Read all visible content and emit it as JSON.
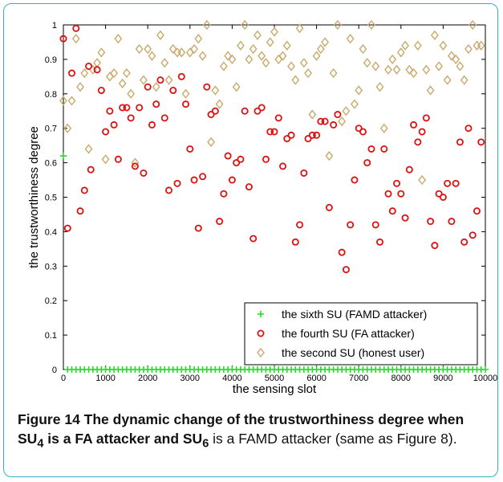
{
  "caption": {
    "label": "Figure 14",
    "text": "The dynamic change of the trustworthiness degree when SU",
    "sub1": "4",
    "text2": " is a FA attacker and SU",
    "sub2": "6",
    "text3": " is a FAMD attacker (same as Figure 8)."
  },
  "colors": {
    "frame": "#2fb5c7",
    "sixth": "#22dd22",
    "fourth": "#dd1111",
    "second": "#c8a96a"
  },
  "chart_data": {
    "type": "scatter",
    "xlabel": "the sensing slot",
    "ylabel": "the trustworthiness degree",
    "xlim": [
      0,
      10000
    ],
    "ylim": [
      0,
      1
    ],
    "xticks": [
      0,
      1000,
      2000,
      3000,
      4000,
      5000,
      6000,
      7000,
      8000,
      9000,
      10000
    ],
    "yticks": [
      0,
      0.1,
      0.2,
      0.3,
      0.4,
      0.5,
      0.6,
      0.7,
      0.8,
      0.9,
      1
    ],
    "ytick_labels": [
      "0",
      "0.1",
      "0.2",
      "0.3",
      "0.4",
      "0.5",
      "0.6",
      "0.7",
      "0.8",
      "0.9",
      "1"
    ],
    "legend_position": "bottom-right",
    "series": [
      {
        "name": "the sixth SU (FAMD attacker)",
        "marker": "plus",
        "color": "#22dd22",
        "points": [
          [
            0,
            0.62
          ],
          [
            100,
            0
          ],
          [
            200,
            0
          ],
          [
            300,
            0
          ],
          [
            400,
            0
          ],
          [
            500,
            0
          ],
          [
            600,
            0
          ],
          [
            700,
            0
          ],
          [
            800,
            0
          ],
          [
            900,
            0
          ],
          [
            1000,
            0
          ],
          [
            1100,
            0
          ],
          [
            1200,
            0
          ],
          [
            1300,
            0
          ],
          [
            1400,
            0
          ],
          [
            1500,
            0
          ],
          [
            1600,
            0
          ],
          [
            1700,
            0
          ],
          [
            1800,
            0
          ],
          [
            1900,
            0
          ],
          [
            2000,
            0
          ],
          [
            2100,
            0
          ],
          [
            2200,
            0
          ],
          [
            2300,
            0
          ],
          [
            2400,
            0
          ],
          [
            2500,
            0
          ],
          [
            2600,
            0
          ],
          [
            2700,
            0
          ],
          [
            2800,
            0
          ],
          [
            2900,
            0
          ],
          [
            3000,
            0
          ],
          [
            3100,
            0
          ],
          [
            3200,
            0
          ],
          [
            3300,
            0
          ],
          [
            3400,
            0
          ],
          [
            3500,
            0
          ],
          [
            3600,
            0
          ],
          [
            3700,
            0
          ],
          [
            3800,
            0
          ],
          [
            3900,
            0
          ],
          [
            4000,
            0
          ],
          [
            4100,
            0
          ],
          [
            4200,
            0
          ],
          [
            4300,
            0
          ],
          [
            4400,
            0
          ],
          [
            4500,
            0
          ],
          [
            4600,
            0
          ],
          [
            4700,
            0
          ],
          [
            4800,
            0
          ],
          [
            4900,
            0
          ],
          [
            5000,
            0
          ],
          [
            5100,
            0
          ],
          [
            5200,
            0
          ],
          [
            5300,
            0
          ],
          [
            5400,
            0
          ],
          [
            5500,
            0
          ],
          [
            5600,
            0
          ],
          [
            5700,
            0
          ],
          [
            5800,
            0
          ],
          [
            5900,
            0
          ],
          [
            6000,
            0
          ],
          [
            6100,
            0
          ],
          [
            6200,
            0
          ],
          [
            6300,
            0
          ],
          [
            6400,
            0
          ],
          [
            6500,
            0
          ],
          [
            6600,
            0
          ],
          [
            6700,
            0
          ],
          [
            6800,
            0
          ],
          [
            6900,
            0
          ],
          [
            7000,
            0
          ],
          [
            7100,
            0
          ],
          [
            7200,
            0
          ],
          [
            7300,
            0
          ],
          [
            7400,
            0
          ],
          [
            7500,
            0
          ],
          [
            7600,
            0
          ],
          [
            7700,
            0
          ],
          [
            7800,
            0
          ],
          [
            7900,
            0
          ],
          [
            8000,
            0
          ],
          [
            8100,
            0
          ],
          [
            8200,
            0
          ],
          [
            8300,
            0
          ],
          [
            8400,
            0
          ],
          [
            8500,
            0
          ],
          [
            8600,
            0
          ],
          [
            8700,
            0
          ],
          [
            8800,
            0
          ],
          [
            8900,
            0
          ],
          [
            9000,
            0
          ],
          [
            9100,
            0
          ],
          [
            9200,
            0
          ],
          [
            9300,
            0
          ],
          [
            9400,
            0
          ],
          [
            9500,
            0
          ],
          [
            9600,
            0
          ],
          [
            9700,
            0
          ],
          [
            9800,
            0
          ],
          [
            9900,
            0
          ],
          [
            10000,
            0
          ]
        ]
      },
      {
        "name": "the fourth SU (FA attacker)",
        "marker": "circle",
        "color": "#dd1111",
        "points": [
          [
            0,
            0.96
          ],
          [
            100,
            0.41
          ],
          [
            200,
            0.86
          ],
          [
            300,
            0.99
          ],
          [
            400,
            0.46
          ],
          [
            500,
            0.52
          ],
          [
            600,
            0.88
          ],
          [
            650,
            0.58
          ],
          [
            800,
            0.87
          ],
          [
            900,
            0.81
          ],
          [
            1000,
            0.69
          ],
          [
            1100,
            0.75
          ],
          [
            1200,
            0.71
          ],
          [
            1300,
            0.61
          ],
          [
            1400,
            0.76
          ],
          [
            1500,
            0.76
          ],
          [
            1600,
            0.73
          ],
          [
            1700,
            0.59
          ],
          [
            1800,
            0.76
          ],
          [
            1900,
            0.57
          ],
          [
            2000,
            0.82
          ],
          [
            2100,
            0.71
          ],
          [
            2200,
            0.77
          ],
          [
            2300,
            0.84
          ],
          [
            2400,
            0.73
          ],
          [
            2500,
            0.52
          ],
          [
            2600,
            0.81
          ],
          [
            2700,
            0.54
          ],
          [
            2800,
            0.85
          ],
          [
            2900,
            0.77
          ],
          [
            3000,
            0.64
          ],
          [
            3100,
            0.55
          ],
          [
            3200,
            0.41
          ],
          [
            3300,
            0.56
          ],
          [
            3400,
            0.82
          ],
          [
            3500,
            0.74
          ],
          [
            3600,
            0.75
          ],
          [
            3700,
            0.43
          ],
          [
            3800,
            0.51
          ],
          [
            3900,
            0.62
          ],
          [
            4000,
            0.55
          ],
          [
            4100,
            0.6
          ],
          [
            4200,
            0.61
          ],
          [
            4300,
            0.75
          ],
          [
            4400,
            0.53
          ],
          [
            4500,
            0.38
          ],
          [
            4600,
            0.75
          ],
          [
            4700,
            0.76
          ],
          [
            4800,
            0.61
          ],
          [
            4900,
            0.69
          ],
          [
            5000,
            0.69
          ],
          [
            5100,
            0.73
          ],
          [
            5200,
            0.59
          ],
          [
            5300,
            0.67
          ],
          [
            5400,
            0.68
          ],
          [
            5500,
            0.37
          ],
          [
            5600,
            0.42
          ],
          [
            5700,
            0.57
          ],
          [
            5800,
            0.67
          ],
          [
            5900,
            0.68
          ],
          [
            6000,
            0.68
          ],
          [
            6100,
            0.72
          ],
          [
            6200,
            0.72
          ],
          [
            6300,
            0.47
          ],
          [
            6400,
            0.71
          ],
          [
            6500,
            0.74
          ],
          [
            6600,
            0.34
          ],
          [
            6700,
            0.29
          ],
          [
            6800,
            0.42
          ],
          [
            6900,
            0.55
          ],
          [
            7000,
            0.7
          ],
          [
            7100,
            0.69
          ],
          [
            7200,
            0.6
          ],
          [
            7300,
            0.64
          ],
          [
            7400,
            0.42
          ],
          [
            7500,
            0.37
          ],
          [
            7600,
            0.64
          ],
          [
            7700,
            0.51
          ],
          [
            7800,
            0.46
          ],
          [
            7900,
            0.54
          ],
          [
            8000,
            0.51
          ],
          [
            8100,
            0.44
          ],
          [
            8200,
            0.58
          ],
          [
            8300,
            0.71
          ],
          [
            8400,
            0.66
          ],
          [
            8500,
            0.69
          ],
          [
            8600,
            0.73
          ],
          [
            8700,
            0.43
          ],
          [
            8800,
            0.36
          ],
          [
            8900,
            0.51
          ],
          [
            9000,
            0.5
          ],
          [
            9100,
            0.54
          ],
          [
            9200,
            0.43
          ],
          [
            9300,
            0.54
          ],
          [
            9400,
            0.66
          ],
          [
            9500,
            0.37
          ],
          [
            9600,
            0.7
          ],
          [
            9700,
            0.39
          ],
          [
            9800,
            0.46
          ],
          [
            9900,
            0.66
          ]
        ]
      },
      {
        "name": "the second SU (honest user)",
        "marker": "diamond",
        "color": "#c8a96a",
        "points": [
          [
            0,
            0.78
          ],
          [
            100,
            0.7
          ],
          [
            200,
            0.78
          ],
          [
            300,
            0.96
          ],
          [
            400,
            0.82
          ],
          [
            500,
            0.86
          ],
          [
            600,
            0.64
          ],
          [
            700,
            0.87
          ],
          [
            800,
            0.89
          ],
          [
            900,
            0.92
          ],
          [
            1000,
            0.61
          ],
          [
            1100,
            0.85
          ],
          [
            1200,
            0.86
          ],
          [
            1300,
            0.96
          ],
          [
            1400,
            0.83
          ],
          [
            1500,
            0.86
          ],
          [
            1600,
            0.8
          ],
          [
            1700,
            0.6
          ],
          [
            1800,
            0.93
          ],
          [
            1900,
            0.84
          ],
          [
            2000,
            0.93
          ],
          [
            2100,
            0.91
          ],
          [
            2200,
            0.82
          ],
          [
            2300,
            0.97
          ],
          [
            2400,
            0.89
          ],
          [
            2500,
            0.84
          ],
          [
            2600,
            0.93
          ],
          [
            2700,
            0.92
          ],
          [
            2800,
            0.92
          ],
          [
            2900,
            0.8
          ],
          [
            3000,
            0.92
          ],
          [
            3100,
            0.93
          ],
          [
            3200,
            0.96
          ],
          [
            3300,
            0.91
          ],
          [
            3400,
            1.0
          ],
          [
            3500,
            0.66
          ],
          [
            3600,
            0.81
          ],
          [
            3700,
            0.77
          ],
          [
            3800,
            0.88
          ],
          [
            3900,
            0.91
          ],
          [
            4000,
            0.9
          ],
          [
            4100,
            0.82
          ],
          [
            4200,
            0.94
          ],
          [
            4300,
            1.0
          ],
          [
            4400,
            0.9
          ],
          [
            4500,
            0.93
          ],
          [
            4600,
            0.97
          ],
          [
            4700,
            0.91
          ],
          [
            4800,
            0.89
          ],
          [
            4900,
            0.95
          ],
          [
            5000,
            0.98
          ],
          [
            5100,
            0.9
          ],
          [
            5200,
            0.91
          ],
          [
            5300,
            0.94
          ],
          [
            5400,
            0.88
          ],
          [
            5500,
            0.84
          ],
          [
            5600,
            0.99
          ],
          [
            5700,
            0.89
          ],
          [
            5800,
            0.86
          ],
          [
            5900,
            0.74
          ],
          [
            6000,
            0.91
          ],
          [
            6100,
            0.93
          ],
          [
            6200,
            0.95
          ],
          [
            6300,
            0.62
          ],
          [
            6400,
            0.86
          ],
          [
            6500,
            1.0
          ],
          [
            6600,
            0.72
          ],
          [
            6700,
            0.75
          ],
          [
            6800,
            0.96
          ],
          [
            6900,
            0.77
          ],
          [
            7000,
            0.81
          ],
          [
            7100,
            0.93
          ],
          [
            7200,
            0.89
          ],
          [
            7300,
            1.0
          ],
          [
            7400,
            0.88
          ],
          [
            7500,
            0.82
          ],
          [
            7600,
            0.7
          ],
          [
            7700,
            0.87
          ],
          [
            7800,
            0.9
          ],
          [
            7900,
            0.87
          ],
          [
            8000,
            0.92
          ],
          [
            8100,
            0.94
          ],
          [
            8200,
            0.87
          ],
          [
            8300,
            0.86
          ],
          [
            8400,
            0.94
          ],
          [
            8500,
            0.55
          ],
          [
            8600,
            0.87
          ],
          [
            8700,
            0.81
          ],
          [
            8800,
            0.97
          ],
          [
            8900,
            0.88
          ],
          [
            9000,
            0.94
          ],
          [
            9100,
            0.84
          ],
          [
            9200,
            0.91
          ],
          [
            9300,
            0.9
          ],
          [
            9400,
            0.88
          ],
          [
            9500,
            0.84
          ],
          [
            9600,
            0.93
          ],
          [
            9700,
            1.0
          ],
          [
            9800,
            0.94
          ],
          [
            9900,
            0.94
          ]
        ]
      }
    ]
  }
}
